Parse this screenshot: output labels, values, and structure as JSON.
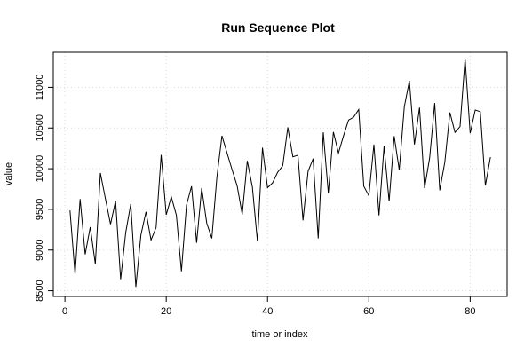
{
  "chart_data": {
    "type": "line",
    "title": "Run Sequence Plot",
    "xlabel": "time or index",
    "ylabel": "value",
    "xlim": [
      -2.3,
      87.3
    ],
    "ylim": [
      8430,
      11430
    ],
    "xticks": [
      0,
      20,
      40,
      60,
      80
    ],
    "yticks": [
      8500,
      9000,
      9500,
      10000,
      10500,
      11000
    ],
    "grid": true,
    "series": [
      {
        "x": [
          1,
          2,
          3,
          4,
          5,
          6,
          7,
          8,
          9,
          10,
          11,
          12,
          13,
          14,
          15,
          16,
          17,
          18,
          19,
          20,
          21,
          22,
          23,
          24,
          25,
          26,
          27,
          28,
          29,
          30,
          31,
          32,
          33,
          34,
          35,
          36,
          37,
          38,
          39,
          40,
          41,
          42,
          43,
          44,
          45,
          46,
          47,
          48,
          49,
          50,
          51,
          52,
          53,
          54,
          55,
          56,
          57,
          58,
          59,
          60,
          61,
          62,
          63,
          64,
          65,
          66,
          67,
          68,
          69,
          70,
          71,
          72,
          73,
          74,
          75,
          76,
          77,
          78,
          79,
          80,
          81,
          82,
          83,
          84
        ],
        "values": [
          9487,
          8700,
          9627,
          8947,
          9283,
          8829,
          9947,
          9628,
          9318,
          9605,
          8640,
          9214,
          9567,
          8547,
          9185,
          9470,
          9123,
          9278,
          10170,
          9434,
          9655,
          9429,
          8739,
          9552,
          9784,
          9089,
          9763,
          9330,
          9144,
          9895,
          10404,
          10195,
          9987,
          9789,
          9437,
          10096,
          9776,
          9106,
          10258,
          9766,
          9826,
          9957,
          10036,
          10508,
          10146,
          10166,
          9365,
          9968,
          10123,
          9144,
          10447,
          9699,
          10451,
          10192,
          10404,
          10597,
          10633,
          10727,
          9784,
          9667,
          10297,
          9426,
          10274,
          9598,
          10400,
          9985,
          10761,
          11081,
          10297,
          10751,
          9760,
          10133,
          10806,
          9734,
          10083,
          10691,
          10446,
          10517,
          11353,
          10436,
          10721,
          10701,
          9793,
          10142
        ]
      }
    ]
  }
}
